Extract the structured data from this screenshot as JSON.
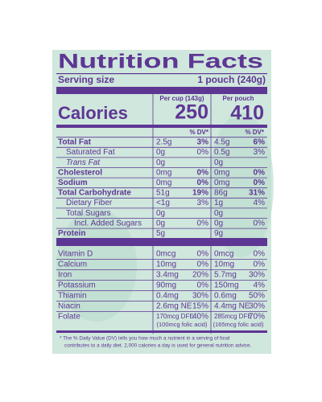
{
  "label": {
    "title": "Nutrition Facts",
    "serving_label": "Serving size",
    "serving_size": "1 pouch (240g)",
    "calories_label": "Calories",
    "columns": [
      {
        "header": "Per cup (143g)",
        "calories": "250",
        "dv_header": "% DV*"
      },
      {
        "header": "Per pouch",
        "calories": "410",
        "dv_header": "% DV*"
      }
    ],
    "nutrients": [
      {
        "name": "Total Fat",
        "per_cup": "2.5g",
        "per_cup_dv": "3%",
        "per_pouch": "4.5g",
        "per_pouch_dv": "6%"
      },
      {
        "name": "Saturated Fat",
        "per_cup": "0g",
        "per_cup_dv": "0%",
        "per_pouch": "0.5g",
        "per_pouch_dv": "3%"
      },
      {
        "name": "Trans Fat",
        "per_cup": "0g",
        "per_cup_dv": null,
        "per_pouch": "0g",
        "per_pouch_dv": null
      },
      {
        "name": "Cholesterol",
        "per_cup": "0mg",
        "per_cup_dv": "0%",
        "per_pouch": "0mg",
        "per_pouch_dv": "0%"
      },
      {
        "name": "Sodium",
        "per_cup": "0mg",
        "per_cup_dv": "0%",
        "per_pouch": "0mg",
        "per_pouch_dv": "0%"
      },
      {
        "name": "Total Carbohydrate",
        "per_cup": "51g",
        "per_cup_dv": "19%",
        "per_pouch": "86g",
        "per_pouch_dv": "31%"
      },
      {
        "name": "Dietary Fiber",
        "per_cup": "<1g",
        "per_cup_dv": "3%",
        "per_pouch": "1g",
        "per_pouch_dv": "4%"
      },
      {
        "name": "Total Sugars",
        "per_cup": "0g",
        "per_cup_dv": null,
        "per_pouch": "0g",
        "per_pouch_dv": null
      },
      {
        "name": "Incl. Added Sugars",
        "per_cup": "0g",
        "per_cup_dv": "0%",
        "per_pouch": "0g",
        "per_pouch_dv": "0%"
      },
      {
        "name": "Protein",
        "per_cup": "5g",
        "per_cup_dv": null,
        "per_pouch": "9g",
        "per_pouch_dv": null
      }
    ],
    "vitamins": [
      {
        "name": "Vitamin D",
        "per_cup": "0mcg",
        "per_cup_dv": "0%",
        "per_pouch": "0mcg",
        "per_pouch_dv": "0%"
      },
      {
        "name": "Calcium",
        "per_cup": "10mg",
        "per_cup_dv": "0%",
        "per_pouch": "10mg",
        "per_pouch_dv": "0%"
      },
      {
        "name": "Iron",
        "per_cup": "3.4mg",
        "per_cup_dv": "20%",
        "per_pouch": "5.7mg",
        "per_pouch_dv": "30%"
      },
      {
        "name": "Potassium",
        "per_cup": "90mg",
        "per_cup_dv": "0%",
        "per_pouch": "150mg",
        "per_pouch_dv": "4%"
      },
      {
        "name": "Thiamin",
        "per_cup": "0.4mg",
        "per_cup_dv": "30%",
        "per_pouch": "0.6mg",
        "per_pouch_dv": "50%"
      },
      {
        "name": "Niacin",
        "per_cup": "2.6mg NE",
        "per_cup_dv": "15%",
        "per_pouch": "4.4mg NE",
        "per_pouch_dv": "30%"
      },
      {
        "name": "Folate",
        "per_cup": "170mcg DFE",
        "per_cup_dv": "40%",
        "per_pouch": "285mcg DFE",
        "per_pouch_dv": "70%",
        "per_cup_note": "(100mcg folic acid)",
        "per_pouch_note": "(165mcg folic acid)"
      }
    ],
    "footnote": [
      "* The % Daily Value (DV) tells you how much a nutrient in a serving of food",
      "contributes to a daily diet. 2,000 calories a day is used for general nutrition advice."
    ]
  }
}
